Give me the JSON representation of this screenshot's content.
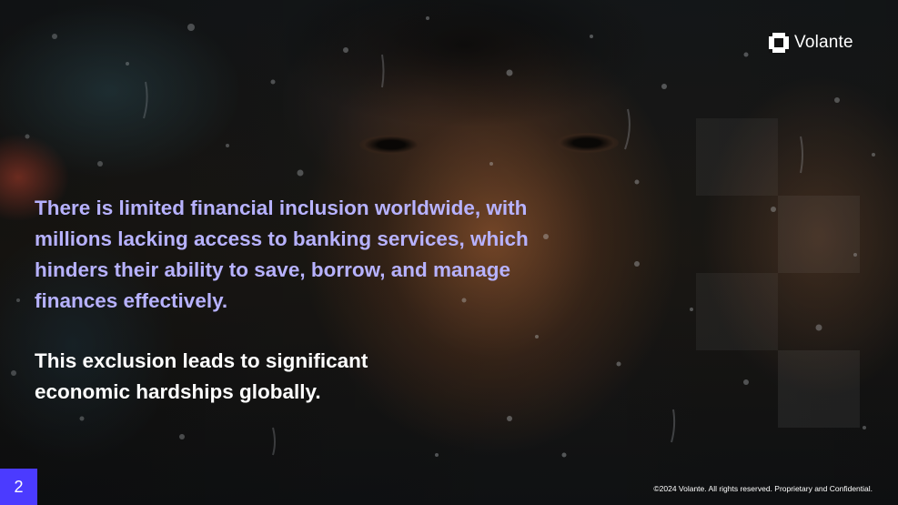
{
  "brand": {
    "name": "Volante",
    "logo_icon": "volante-logo-icon"
  },
  "content": {
    "paragraph_1": "There is limited financial inclusion worldwide, with millions lacking access to banking services, which hinders their ability to save, borrow, and manage finances effectively.",
    "paragraph_2": "This exclusion leads to significant economic hardships globally."
  },
  "footer": {
    "page_number": "2",
    "copyright": "©2024 Volante. All rights reserved. Proprietary and Confidential."
  },
  "colors": {
    "accent_text": "#b7b2ff",
    "page_badge": "#4b3bff",
    "primary_text": "#ffffff"
  }
}
